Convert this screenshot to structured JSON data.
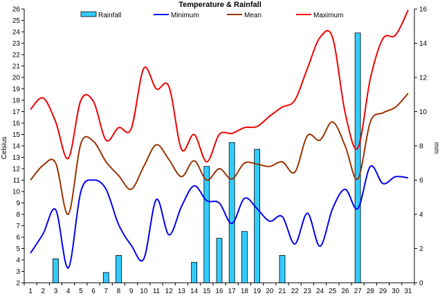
{
  "chart_data": {
    "type": "bar",
    "title": "Temperature & Rainfall",
    "ylabel": "Celsius",
    "y2label": "mm",
    "ylim": [
      2,
      26
    ],
    "y2lim": [
      0,
      16
    ],
    "categories": [
      "1",
      "2",
      "3",
      "4",
      "5",
      "6",
      "7",
      "8",
      "9",
      "10",
      "11",
      "12",
      "13",
      "14",
      "15",
      "16",
      "17",
      "18",
      "19",
      "20",
      "21",
      "22",
      "23",
      "24",
      "25",
      "26",
      "27",
      "28",
      "29",
      "30",
      "31"
    ],
    "grid": false,
    "legend_position": "top",
    "colors": {
      "rainfall": "#33ccff",
      "minimum": "#0000ee",
      "mean": "#993300",
      "maximum": "#ee0000",
      "axis": "#000000"
    },
    "series": [
      {
        "name": "Rainfall",
        "type": "bar",
        "axis": "right",
        "values": [
          0,
          0,
          1.4,
          0,
          0,
          0,
          0.6,
          1.6,
          0,
          0,
          0,
          0,
          0,
          1.2,
          6.8,
          2.6,
          8.2,
          3.0,
          7.8,
          0,
          1.6,
          0,
          0,
          0,
          0,
          0,
          14.6,
          0,
          0,
          0,
          0
        ]
      },
      {
        "name": "Minimum",
        "type": "line",
        "axis": "left",
        "values": [
          4.6,
          6.3,
          8.4,
          3.3,
          10.0,
          11.0,
          10.2,
          7.1,
          5.3,
          4.1,
          9.3,
          6.2,
          8.7,
          10.5,
          9.2,
          9.0,
          7.2,
          9.4,
          8.5,
          7.4,
          7.8,
          5.4,
          8.1,
          5.2,
          8.5,
          10.2,
          8.5,
          12.2,
          10.7,
          11.3,
          11.2
        ]
      },
      {
        "name": "Mean",
        "type": "line",
        "axis": "left",
        "values": [
          11.0,
          12.3,
          12.5,
          8.0,
          14.2,
          14.4,
          12.6,
          11.4,
          10.2,
          12.2,
          14.1,
          12.8,
          11.3,
          12.7,
          11.0,
          12.0,
          11.1,
          12.5,
          12.4,
          12.2,
          12.6,
          11.7,
          14.9,
          14.5,
          16.1,
          14.0,
          11.1,
          16.1,
          16.9,
          17.4,
          18.6
        ]
      },
      {
        "name": "Maximum",
        "type": "line",
        "axis": "left",
        "values": [
          17.2,
          18.2,
          16.1,
          12.9,
          18.0,
          17.9,
          14.5,
          15.6,
          15.5,
          20.8,
          19.0,
          19.2,
          13.7,
          15.0,
          12.6,
          15.0,
          15.1,
          15.6,
          15.7,
          16.6,
          17.4,
          18.0,
          20.8,
          23.5,
          23.5,
          16.9,
          13.8,
          19.9,
          23.4,
          23.7,
          25.9
        ]
      }
    ]
  }
}
